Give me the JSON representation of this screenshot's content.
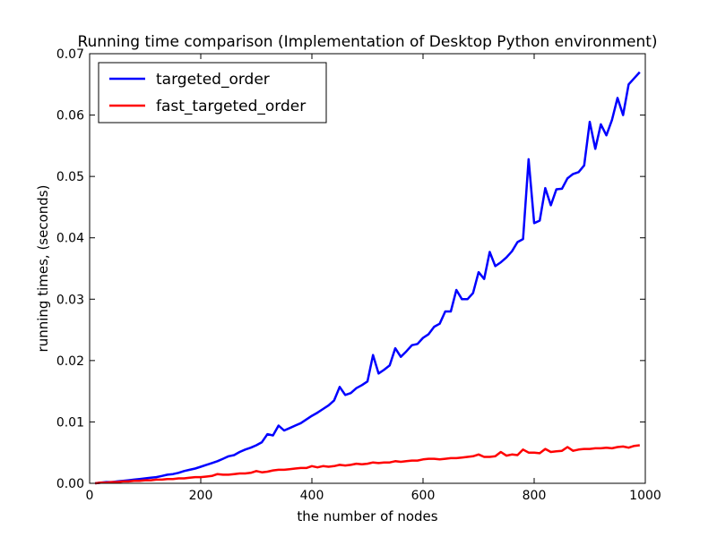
{
  "chart_data": {
    "type": "line",
    "title": "Running time comparison (Implementation of Desktop Python environment)",
    "xlabel": "the number of nodes",
    "ylabel": "running times, (seconds)",
    "xlim": [
      0,
      1000
    ],
    "ylim": [
      0,
      0.07
    ],
    "xticks": [
      0,
      200,
      400,
      600,
      800,
      1000
    ],
    "xtick_labels": [
      "0",
      "200",
      "400",
      "600",
      "800",
      "1000"
    ],
    "yticks": [
      0,
      0.01,
      0.02,
      0.03,
      0.04,
      0.05,
      0.06,
      0.07
    ],
    "ytick_labels": [
      "0.00",
      "0.01",
      "0.02",
      "0.03",
      "0.04",
      "0.05",
      "0.06",
      "0.07"
    ],
    "grid": false,
    "legend_position": "top-left",
    "x": [
      10,
      20,
      30,
      40,
      50,
      60,
      70,
      80,
      90,
      100,
      110,
      120,
      130,
      140,
      150,
      160,
      170,
      180,
      190,
      200,
      210,
      220,
      230,
      240,
      250,
      260,
      270,
      280,
      290,
      300,
      310,
      320,
      330,
      340,
      350,
      360,
      370,
      380,
      390,
      400,
      410,
      420,
      430,
      440,
      450,
      460,
      470,
      480,
      490,
      500,
      510,
      520,
      530,
      540,
      550,
      560,
      570,
      580,
      590,
      600,
      610,
      620,
      630,
      640,
      650,
      660,
      670,
      680,
      690,
      700,
      710,
      720,
      730,
      740,
      750,
      760,
      770,
      780,
      790,
      800,
      810,
      820,
      830,
      840,
      850,
      860,
      870,
      880,
      890,
      900,
      910,
      920,
      930,
      940,
      950,
      960,
      970,
      980,
      990
    ],
    "series": [
      {
        "name": "targeted_order",
        "color": "#0000ff",
        "values": [
          0.0,
          0.0001,
          0.0002,
          0.0002,
          0.0003,
          0.0004,
          0.0005,
          0.0006,
          0.0007,
          0.0008,
          0.0009,
          0.001,
          0.0012,
          0.0014,
          0.0015,
          0.0017,
          0.002,
          0.0022,
          0.0024,
          0.0027,
          0.003,
          0.0033,
          0.0036,
          0.004,
          0.0044,
          0.0046,
          0.0051,
          0.0055,
          0.0058,
          0.0062,
          0.0067,
          0.008,
          0.0078,
          0.0094,
          0.0086,
          0.009,
          0.0094,
          0.0098,
          0.0104,
          0.011,
          0.0115,
          0.0121,
          0.0127,
          0.0135,
          0.0157,
          0.0144,
          0.0147,
          0.0155,
          0.016,
          0.0166,
          0.0209,
          0.0179,
          0.0185,
          0.0192,
          0.022,
          0.0206,
          0.0215,
          0.0225,
          0.0227,
          0.0237,
          0.0243,
          0.0255,
          0.026,
          0.028,
          0.028,
          0.0315,
          0.03,
          0.03,
          0.031,
          0.0344,
          0.0333,
          0.0377,
          0.0354,
          0.036,
          0.0368,
          0.0378,
          0.0393,
          0.0398,
          0.0528,
          0.0424,
          0.0428,
          0.0481,
          0.0453,
          0.0479,
          0.048,
          0.0497,
          0.0504,
          0.0507,
          0.0518,
          0.0589,
          0.0545,
          0.0585,
          0.0567,
          0.0592,
          0.0628,
          0.06,
          0.065,
          0.066,
          0.067
        ]
      },
      {
        "name": "fast_targeted_order",
        "color": "#ff0000",
        "values": [
          0.0,
          0.0001,
          0.0001,
          0.0002,
          0.0002,
          0.0003,
          0.0003,
          0.0004,
          0.0004,
          0.0005,
          0.0005,
          0.0006,
          0.0006,
          0.0007,
          0.0007,
          0.0008,
          0.0008,
          0.0009,
          0.001,
          0.001,
          0.0011,
          0.0012,
          0.0015,
          0.0014,
          0.0014,
          0.0015,
          0.0016,
          0.0016,
          0.0017,
          0.002,
          0.0018,
          0.0019,
          0.0021,
          0.0022,
          0.0022,
          0.0023,
          0.0024,
          0.0025,
          0.0025,
          0.0028,
          0.0026,
          0.0028,
          0.0027,
          0.0028,
          0.003,
          0.0029,
          0.003,
          0.0032,
          0.0031,
          0.0032,
          0.0034,
          0.0033,
          0.0034,
          0.0034,
          0.0036,
          0.0035,
          0.0036,
          0.0037,
          0.0037,
          0.0039,
          0.004,
          0.004,
          0.0039,
          0.004,
          0.0041,
          0.0041,
          0.0042,
          0.0043,
          0.0044,
          0.0047,
          0.0043,
          0.0043,
          0.0044,
          0.0051,
          0.0045,
          0.0047,
          0.0046,
          0.0055,
          0.005,
          0.005,
          0.0049,
          0.0056,
          0.0051,
          0.0052,
          0.0053,
          0.0059,
          0.0053,
          0.0055,
          0.0056,
          0.0056,
          0.0057,
          0.0057,
          0.0058,
          0.0057,
          0.0059,
          0.006,
          0.0058,
          0.0061,
          0.0062
        ]
      }
    ]
  }
}
